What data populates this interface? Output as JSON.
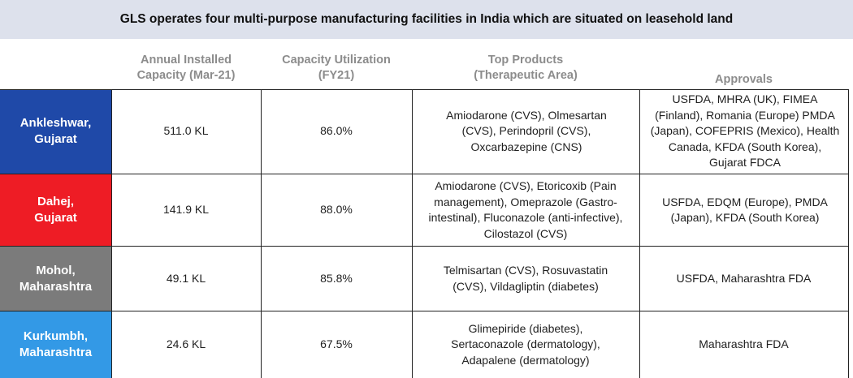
{
  "title": "GLS operates four multi-purpose manufacturing facilities in India which are situated on leasehold land",
  "columns": [
    "Annual Installed\nCapacity (Mar-21)",
    "Capacity Utilization\n(FY21)",
    "Top Products\n(Therapeutic Area)",
    "Approvals"
  ],
  "colors": {
    "ankleshwar": "#1f49a8",
    "dahej": "#ee1c25",
    "mohol": "#7b7b7b",
    "kurkumbh": "#3399e6",
    "banner": "#dde1ec",
    "header_text": "#8c8c8c"
  },
  "rows": [
    {
      "site": "Ankleshwar,\nGujarat",
      "capacity": "511.0 KL",
      "utilization": "86.0%",
      "products": "Amiodarone (CVS), Olmesartan (CVS), Perindopril (CVS), Oxcarbazepine (CNS)",
      "approvals": "USFDA, MHRA (UK), FIMEA (Finland), Romania (Europe) PMDA (Japan), COFEPRIS (Mexico), Health Canada, KFDA (South Korea), Gujarat FDCA"
    },
    {
      "site": "Dahej,\nGujarat",
      "capacity": "141.9 KL",
      "utilization": "88.0%",
      "products": "Amiodarone (CVS), Etoricoxib (Pain management), Omeprazole (Gastro-intestinal), Fluconazole (anti-infective), Cilostazol (CVS)",
      "approvals": "USFDA, EDQM (Europe), PMDA (Japan), KFDA (South Korea)"
    },
    {
      "site": "Mohol,\nMaharashtra",
      "capacity": "49.1 KL",
      "utilization": "85.8%",
      "products": "Telmisartan (CVS), Rosuvastatin (CVS), Vildagliptin (diabetes)",
      "approvals": "USFDA, Maharashtra FDA"
    },
    {
      "site": "Kurkumbh,\nMaharashtra",
      "capacity": "24.6 KL",
      "utilization": "67.5%",
      "products": "Glimepiride (diabetes), Sertaconazole (dermatology), Adapalene (dermatology)",
      "approvals": "Maharashtra FDA"
    }
  ]
}
